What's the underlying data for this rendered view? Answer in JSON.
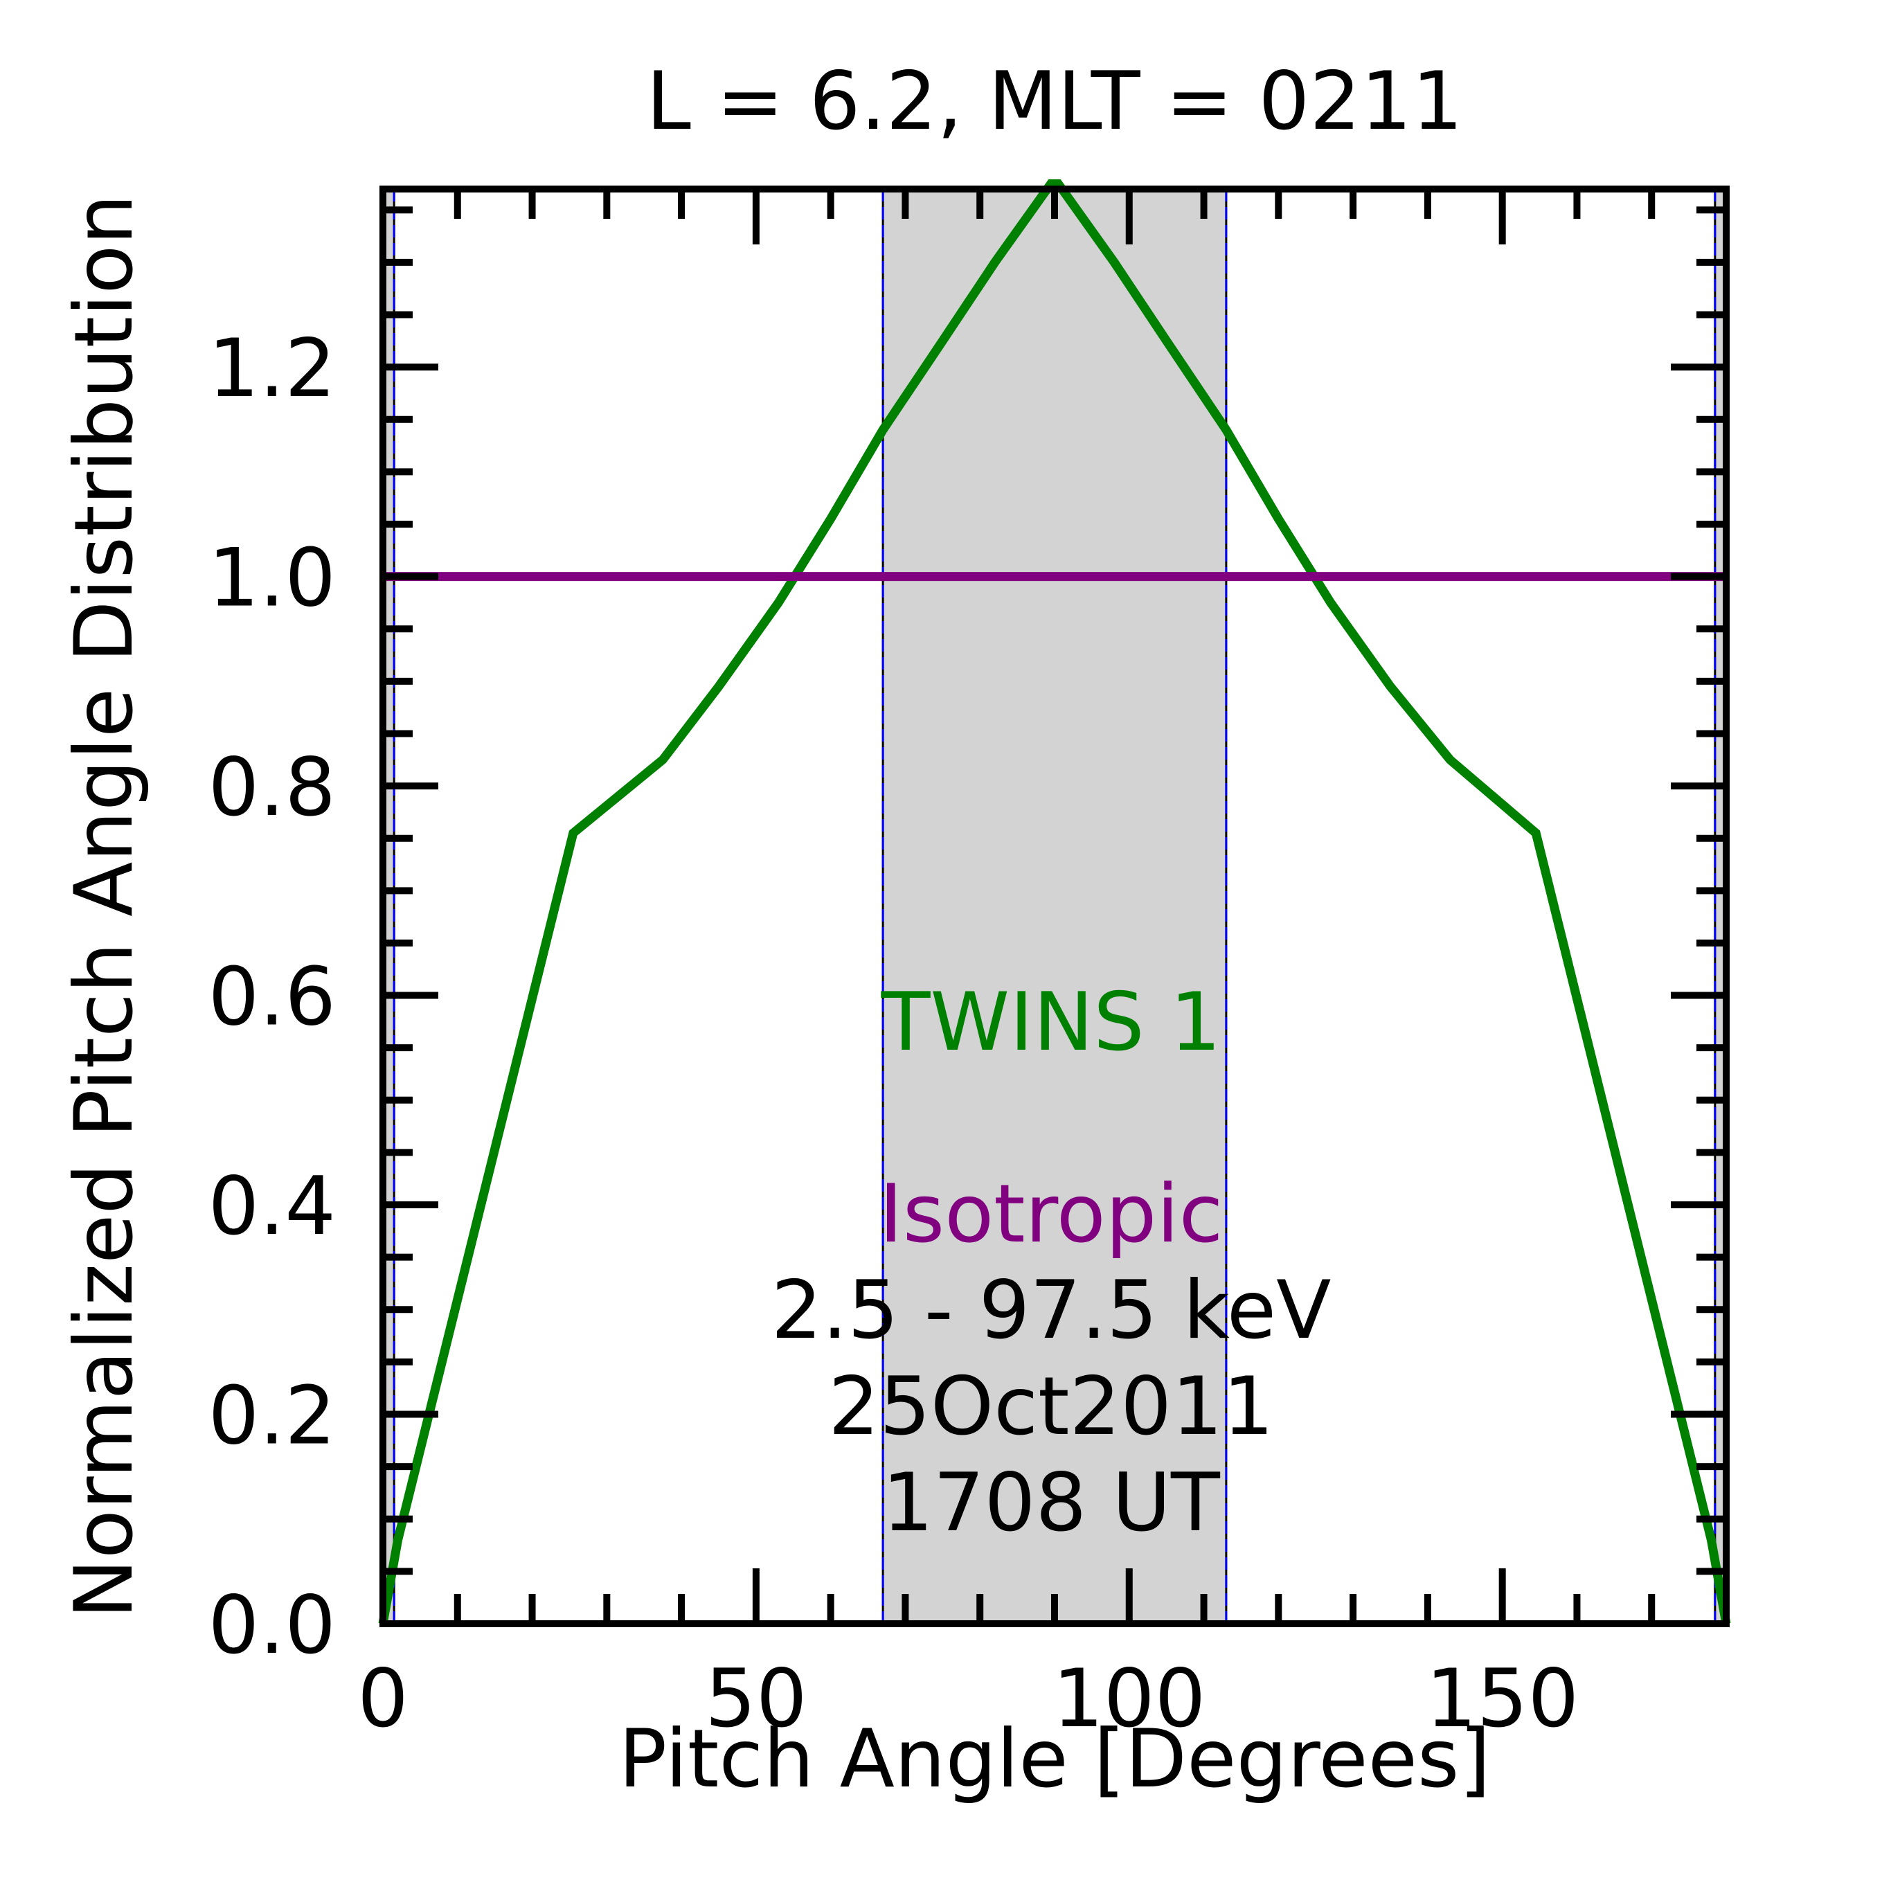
{
  "chart_data": {
    "type": "line",
    "title": "L =  6.2, MLT = 0211",
    "xlabel": "Pitch Angle [Degrees]",
    "ylabel": "Normalized Pitch Angle Distribution",
    "xlim": [
      0,
      180
    ],
    "ylim": [
      0,
      1.37
    ],
    "xticks": [
      0,
      50,
      100,
      150
    ],
    "xtick_labels": [
      "0",
      "50",
      "100",
      "150"
    ],
    "yticks": [
      0,
      0.2,
      0.4,
      0.6,
      0.8,
      1.0,
      1.2
    ],
    "ytick_labels": [
      "0.0",
      "0.2",
      "0.4",
      "0.6",
      "0.8",
      "1.0",
      "1.2"
    ],
    "grid": false,
    "shaded_regions": [
      {
        "x0": 0,
        "x1": 1.5
      },
      {
        "x0": 67,
        "x1": 113
      },
      {
        "x0": 178.5,
        "x1": 180
      }
    ],
    "series": [
      {
        "name": "TWINS 1",
        "color": "#008000",
        "x": [
          0,
          2,
          25.5,
          37.5,
          45,
          53,
          60,
          67,
          75,
          82,
          89.5,
          90.5,
          98,
          105,
          113,
          120,
          127,
          135,
          143,
          154.5,
          178,
          180
        ],
        "y": [
          0,
          0.08,
          0.755,
          0.825,
          0.895,
          0.975,
          1.055,
          1.14,
          1.225,
          1.3,
          1.375,
          1.375,
          1.3,
          1.225,
          1.14,
          1.055,
          0.975,
          0.895,
          0.825,
          0.755,
          0.08,
          0
        ]
      },
      {
        "name": "Isotropic",
        "color": "#800080",
        "x": [
          0,
          180
        ],
        "y": [
          1.0,
          1.0
        ]
      }
    ],
    "annotations": {
      "series1_label": "TWINS 1",
      "series2_label": "Isotropic",
      "energy": "2.5 - 97.5 keV",
      "date": "25Oct2011",
      "time": "1708 UT"
    }
  }
}
